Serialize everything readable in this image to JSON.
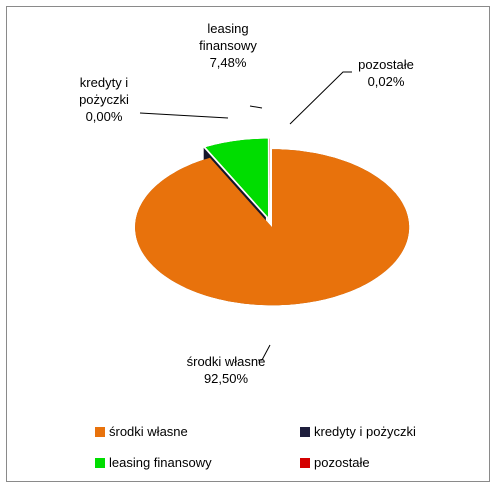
{
  "chart_data": {
    "type": "pie3d",
    "categories": [
      "środki własne",
      "kredyty i pożyczki",
      "leasing finansowy",
      "pozostałe"
    ],
    "values": [
      92.5,
      0.0,
      7.48,
      0.02
    ],
    "value_labels": [
      "92,50%",
      "0,00%",
      "7,48%",
      "0,02%"
    ],
    "colors": [
      "#e8720c",
      "#1e1e3c",
      "#00dd00",
      "#d40000"
    ],
    "legend": "bottom"
  }
}
